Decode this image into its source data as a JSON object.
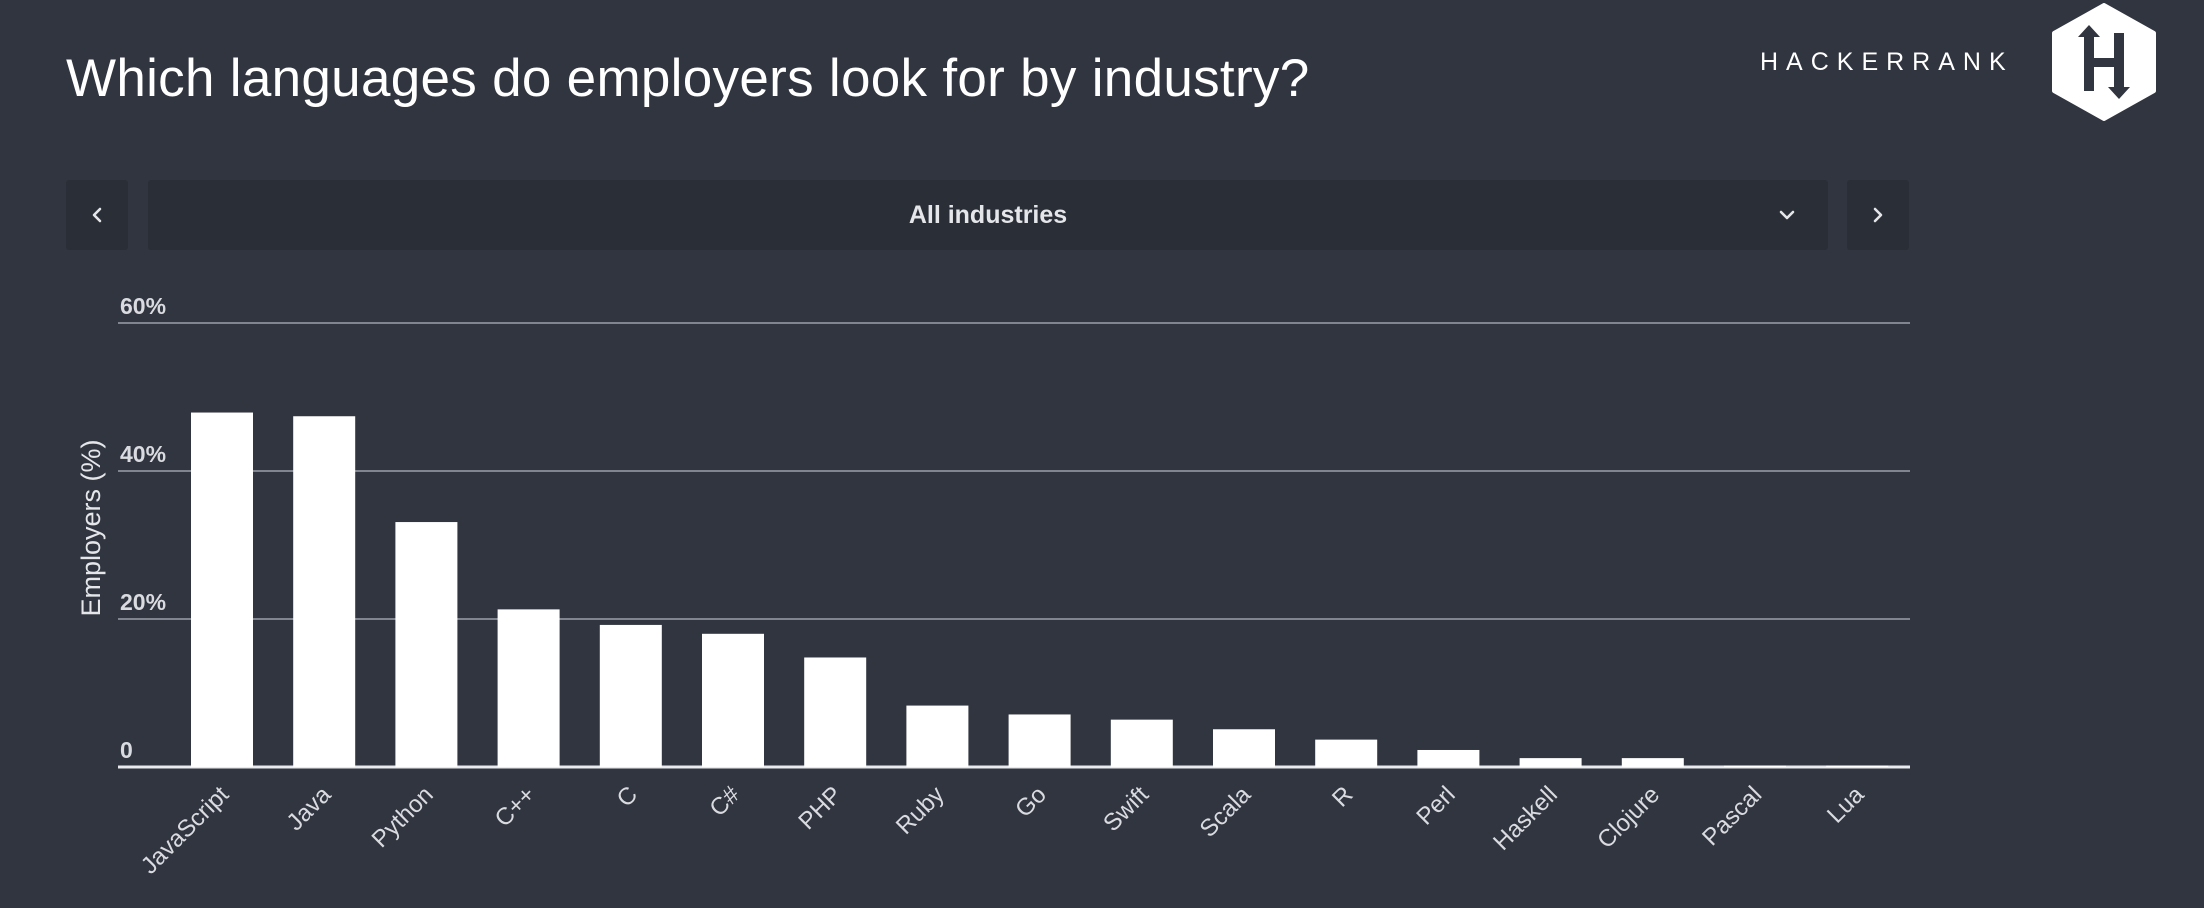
{
  "header": {
    "title": "Which languages do employers look for by industry?",
    "brand": "HACKERRANK",
    "logo_icon": "hackerrank-hexagon-logo-icon",
    "logo_letter": "H"
  },
  "controls": {
    "prev_icon": "chevron-left-icon",
    "next_icon": "chevron-right-icon",
    "dropdown_icon": "chevron-down-icon",
    "selected_industry": "All industries"
  },
  "colors": {
    "background": "#30353f",
    "control_bg": "#2a2e36",
    "bar": "#ffffff",
    "gridline": "#9aa0aa"
  },
  "chart_data": {
    "type": "bar",
    "title": "Which languages do employers look for by industry?",
    "xlabel": "",
    "ylabel": "Employers (%)",
    "ylim": [
      0,
      60
    ],
    "yticks": [
      0,
      20,
      40,
      60
    ],
    "ytick_labels": [
      "0",
      "20%",
      "40%",
      "60%"
    ],
    "grid": true,
    "categories": [
      "JavaScript",
      "Java",
      "Python",
      "C++",
      "C",
      "C#",
      "PHP",
      "Ruby",
      "Go",
      "Swift",
      "Scala",
      "R",
      "Perl",
      "Haskell",
      "Clojure",
      "Pascal",
      "Lua"
    ],
    "values": [
      47.9,
      47.4,
      33.1,
      21.3,
      19.2,
      18.0,
      14.8,
      8.3,
      7.1,
      6.4,
      5.1,
      3.7,
      2.3,
      1.2,
      1.2,
      0.2,
      0.2
    ]
  }
}
